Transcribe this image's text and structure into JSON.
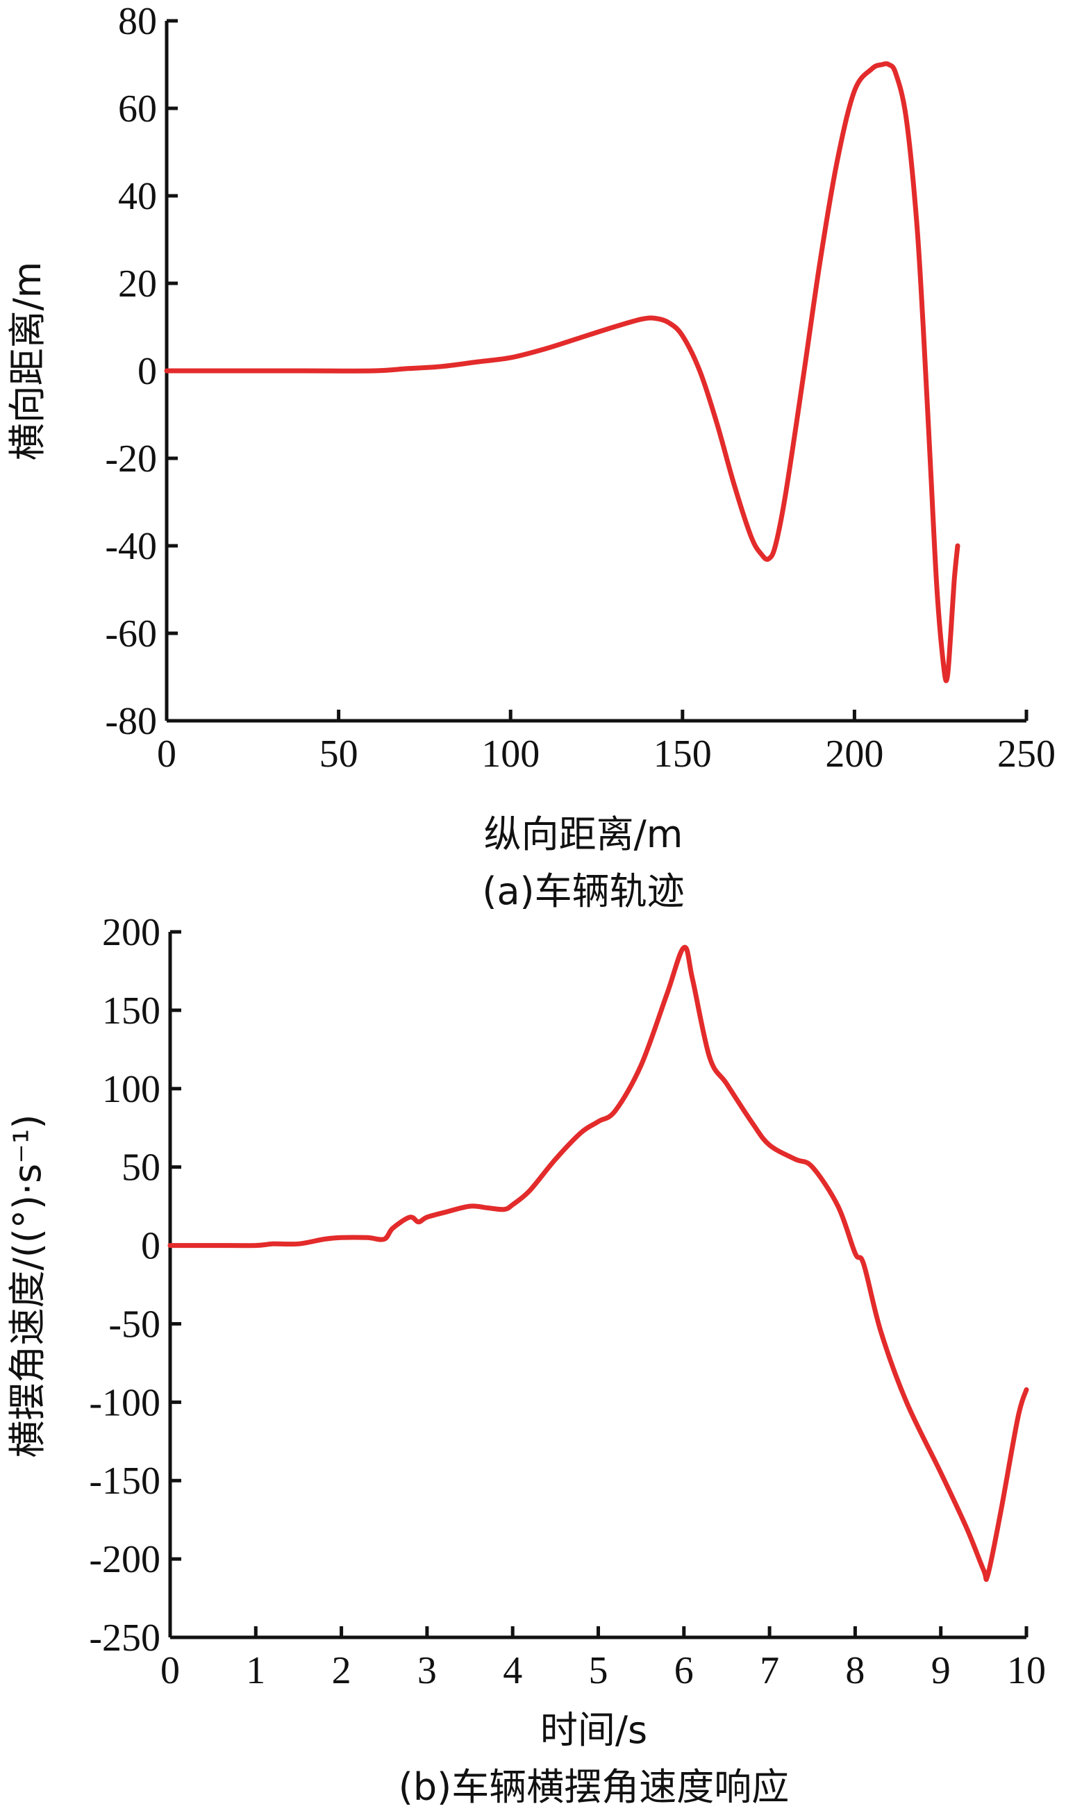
{
  "colors": {
    "series": "#e32b2b",
    "axis": "#111111",
    "background": "#ffffff"
  },
  "chart_data": [
    {
      "type": "line",
      "caption": "(a)车辆轨迹",
      "xlabel": "纵向距离/m",
      "ylabel": "横向距离/m",
      "xlim": [
        0,
        250
      ],
      "ylim": [
        -80,
        80
      ],
      "xticks": [
        0,
        50,
        100,
        150,
        200,
        250
      ],
      "yticks": [
        -80,
        -60,
        -40,
        -20,
        0,
        20,
        40,
        60,
        80
      ],
      "grid": false,
      "series": [
        {
          "x": [
            0,
            20,
            40,
            60,
            70,
            80,
            90,
            100,
            110,
            120,
            130,
            138,
            142,
            146,
            150,
            155,
            160,
            165,
            170,
            173,
            175,
            177,
            180,
            185,
            190,
            195,
            200,
            205,
            208,
            210,
            212,
            215,
            218,
            220,
            222,
            224,
            226,
            227,
            228,
            229,
            230
          ],
          "y": [
            0,
            0,
            0,
            0,
            0.5,
            1,
            2,
            3,
            5,
            7.5,
            10,
            11.8,
            12,
            11,
            8,
            0,
            -12,
            -26,
            -38,
            -42,
            -43,
            -40,
            -28,
            -2,
            25,
            48,
            64,
            69,
            70,
            70,
            68,
            58,
            35,
            10,
            -20,
            -50,
            -68,
            -70,
            -60,
            -48,
            -40
          ]
        }
      ]
    },
    {
      "type": "line",
      "caption": "(b)车辆横摆角速度响应",
      "xlabel": "时间/s",
      "ylabel": "横摆角速度/((°)·s⁻¹)",
      "xlim": [
        0,
        10
      ],
      "ylim": [
        -250,
        200
      ],
      "xticks": [
        0,
        1,
        2,
        3,
        4,
        5,
        6,
        7,
        8,
        9,
        10
      ],
      "yticks": [
        -250,
        -200,
        -150,
        -100,
        -50,
        0,
        50,
        100,
        150,
        200
      ],
      "grid": false,
      "series": [
        {
          "x": [
            0,
            0.5,
            1,
            1.2,
            1.5,
            1.8,
            2,
            2.3,
            2.5,
            2.6,
            2.8,
            2.9,
            3,
            3.2,
            3.5,
            3.7,
            3.9,
            4,
            4.2,
            4.5,
            4.8,
            5,
            5.2,
            5.5,
            5.8,
            6,
            6.1,
            6.3,
            6.5,
            6.8,
            7,
            7.3,
            7.5,
            7.8,
            8,
            8.1,
            8.3,
            8.6,
            9,
            9.3,
            9.5,
            9.55,
            9.7,
            9.9,
            10
          ],
          "y": [
            0,
            0,
            0,
            1,
            1,
            4,
            5,
            5,
            4,
            11,
            18,
            15,
            18,
            21,
            25,
            24,
            23,
            26,
            35,
            55,
            72,
            79,
            86,
            115,
            160,
            190,
            170,
            120,
            103,
            78,
            64,
            55,
            50,
            25,
            -5,
            -12,
            -55,
            -100,
            -145,
            -180,
            -207,
            -210,
            -170,
            -110,
            -92
          ]
        }
      ]
    }
  ]
}
